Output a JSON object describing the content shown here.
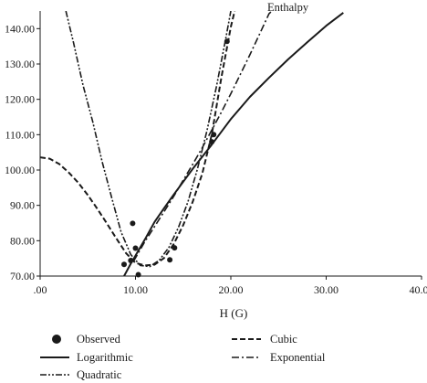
{
  "chart_data": {
    "type": "line",
    "title": "",
    "annotation": "Enthalpy",
    "xlabel": "H (G)",
    "ylabel": "",
    "xlim": [
      0,
      40
    ],
    "ylim": [
      70,
      145
    ],
    "x_ticks": [
      0,
      10,
      20,
      30,
      40
    ],
    "x_tick_labels": [
      ".00",
      "10.00",
      "20.00",
      "30.00",
      "40.00"
    ],
    "y_ticks": [
      70,
      80,
      90,
      100,
      110,
      120,
      130,
      140
    ],
    "y_tick_labels": [
      "70.00",
      "80.00",
      "90.00",
      "100.00",
      "110.00",
      "120.00",
      "130.00",
      "140.00"
    ],
    "grid": false,
    "legend_position": "bottom",
    "colors": {
      "ink": "#1a1a1a",
      "background": "#ffffff"
    },
    "observed": {
      "name": "Observed",
      "points": [
        [
          8.8,
          73.3
        ],
        [
          9.5,
          74.4
        ],
        [
          9.7,
          84.9
        ],
        [
          10.0,
          77.9
        ],
        [
          10.3,
          70.4
        ],
        [
          13.6,
          74.6
        ],
        [
          14.1,
          78.0
        ],
        [
          18.0,
          108.0
        ],
        [
          18.2,
          110.0
        ],
        [
          19.6,
          136.4
        ]
      ]
    },
    "series": [
      {
        "name": "Logarithmic",
        "style": "solid",
        "x": [
          8.8,
          9.5,
          10.0,
          11.0,
          12.0,
          13.0,
          14.0,
          16.0,
          18.0,
          20.0,
          22.0,
          24.0,
          26.0,
          28.0,
          30.0,
          31.8
        ],
        "values": [
          70.0,
          73.5,
          75.8,
          80.4,
          85.3,
          89.2,
          93.0,
          100.3,
          107.2,
          114.4,
          120.7,
          126.1,
          131.3,
          136.1,
          140.8,
          144.5
        ]
      },
      {
        "name": "Cubic",
        "style": "dashed",
        "x": [
          0.0,
          1.0,
          2.0,
          3.0,
          4.0,
          5.0,
          6.0,
          7.0,
          8.0,
          9.0,
          10.0,
          11.0,
          12.0,
          13.0,
          14.0,
          15.0,
          16.0,
          17.0,
          18.0,
          19.0,
          20.0,
          20.4
        ],
        "values": [
          103.6,
          103.2,
          101.7,
          99.3,
          96.4,
          92.9,
          89.0,
          84.9,
          80.6,
          76.5,
          73.7,
          73.0,
          73.2,
          75.1,
          79.0,
          84.4,
          91.0,
          99.0,
          110.0,
          126.0,
          140.5,
          145.0
        ]
      },
      {
        "name": "Exponential",
        "style": "dash-dot",
        "x": [
          9.8,
          11.0,
          12.0,
          13.0,
          14.0,
          15.0,
          16.0,
          17.0,
          18.0,
          19.0,
          20.0,
          21.0,
          22.0,
          23.0,
          24.0,
          24.3
        ],
        "values": [
          74.2,
          79.8,
          84.0,
          88.2,
          92.5,
          97.1,
          101.6,
          106.3,
          111.3,
          116.3,
          121.6,
          127.1,
          132.6,
          138.4,
          144.2,
          145.0
        ]
      },
      {
        "name": "Quadratic",
        "style": "dash-dot-dot",
        "x": [
          2.7,
          3.5,
          4.5,
          5.5,
          6.5,
          7.5,
          8.5,
          9.5,
          10.5,
          11.5,
          12.5,
          13.5,
          14.5,
          15.5,
          16.5,
          17.5,
          18.5,
          19.5,
          20.0
        ],
        "values": [
          145.0,
          136.0,
          124.0,
          113.8,
          102.4,
          92.2,
          82.4,
          76.1,
          73.0,
          72.7,
          74.5,
          78.1,
          83.7,
          91.0,
          100.3,
          111.2,
          123.7,
          137.7,
          145.0
        ]
      }
    ],
    "legend": {
      "observed": "Observed",
      "cubic": "Cubic",
      "logarithmic": "Logarithmic",
      "exponential": "Exponential",
      "quadratic": "Quadratic"
    }
  }
}
